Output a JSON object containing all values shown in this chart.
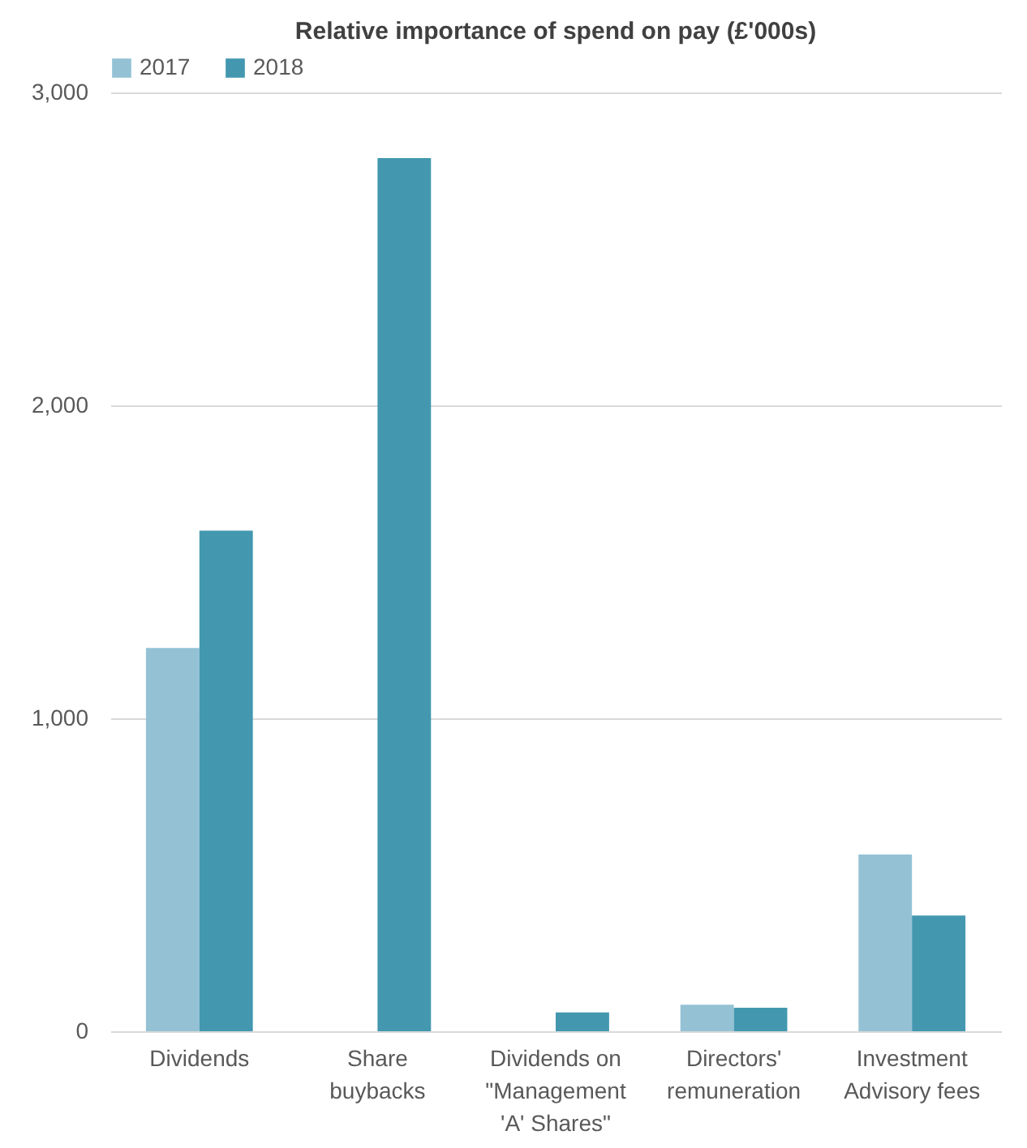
{
  "chart_data": {
    "type": "bar",
    "title": "Relative importance of spend on pay (£'000s)",
    "categories": [
      "Dividends",
      "Share buybacks",
      "Dividends on \"Management 'A' Shares\"",
      "Directors' remuneration",
      "Investment Advisory fees"
    ],
    "series": [
      {
        "name": "2017",
        "color": "#94c2d4",
        "values": [
          1225,
          null,
          null,
          85,
          565
        ]
      },
      {
        "name": "2018",
        "color": "#4398b0",
        "values": [
          1600,
          2790,
          60,
          75,
          370
        ]
      }
    ],
    "ylim": [
      0,
      3000
    ],
    "yticks": [
      0,
      {
        "value": 1000,
        "label": "1,000"
      },
      {
        "value": 2000,
        "label": "2,000"
      },
      {
        "value": 3000,
        "label": "3,000"
      }
    ],
    "grid": "y",
    "legend": "top"
  }
}
